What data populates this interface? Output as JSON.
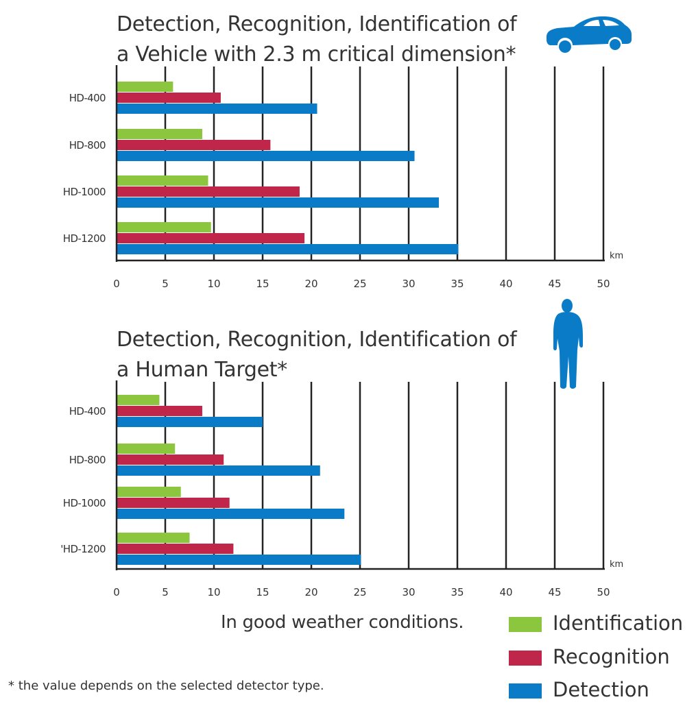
{
  "colors": {
    "identification": "#8cc63f",
    "recognition": "#c0264a",
    "detection": "#0a7cc7",
    "axis": "#222222",
    "icon": "#0a7cc7"
  },
  "icons": [
    "car-icon",
    "person-icon"
  ],
  "weather_note": "In good weather conditions.",
  "footnote": "* the value depends on the selected detector type.",
  "legend": [
    {
      "label": "Identification",
      "series": "identification"
    },
    {
      "label": "Recognition",
      "series": "recognition"
    },
    {
      "label": "Detection",
      "series": "detection"
    }
  ],
  "chart_data": [
    {
      "type": "bar",
      "orientation": "horizontal",
      "title_lines": [
        "Detection, Recognition, Identification of",
        "a Vehicle with 2.3 m critical dimension*"
      ],
      "categories": [
        "HD-400",
        "HD-800",
        "HD-1000",
        "HD-1200"
      ],
      "series": [
        {
          "name": "Identification",
          "key": "identification",
          "values": [
            5.8,
            8.8,
            9.4,
            9.7
          ]
        },
        {
          "name": "Recognition",
          "key": "recognition",
          "values": [
            10.7,
            15.8,
            18.8,
            19.3
          ]
        },
        {
          "name": "Detection",
          "key": "detection",
          "values": [
            20.6,
            30.6,
            33.1,
            35.1
          ]
        }
      ],
      "xlim": [
        0,
        50
      ],
      "xticks": [
        0,
        5,
        10,
        15,
        20,
        25,
        30,
        35,
        40,
        45,
        50
      ],
      "unit": "km",
      "grid": true
    },
    {
      "type": "bar",
      "orientation": "horizontal",
      "title_lines": [
        "Detection, Recognition, Identification of",
        "a Human Target*"
      ],
      "categories": [
        "HD-400",
        "HD-800",
        "HD-1000",
        "'HD-1200"
      ],
      "series": [
        {
          "name": "Identification",
          "key": "identification",
          "values": [
            4.4,
            6.0,
            6.6,
            7.5
          ]
        },
        {
          "name": "Recognition",
          "key": "recognition",
          "values": [
            8.8,
            11.0,
            11.6,
            12.0
          ]
        },
        {
          "name": "Detection",
          "key": "detection",
          "values": [
            15.0,
            20.9,
            23.4,
            25.1
          ]
        }
      ],
      "xlim": [
        0,
        50
      ],
      "xticks": [
        0,
        5,
        10,
        15,
        20,
        25,
        30,
        35,
        40,
        45,
        50
      ],
      "unit": "km",
      "grid": true
    }
  ]
}
